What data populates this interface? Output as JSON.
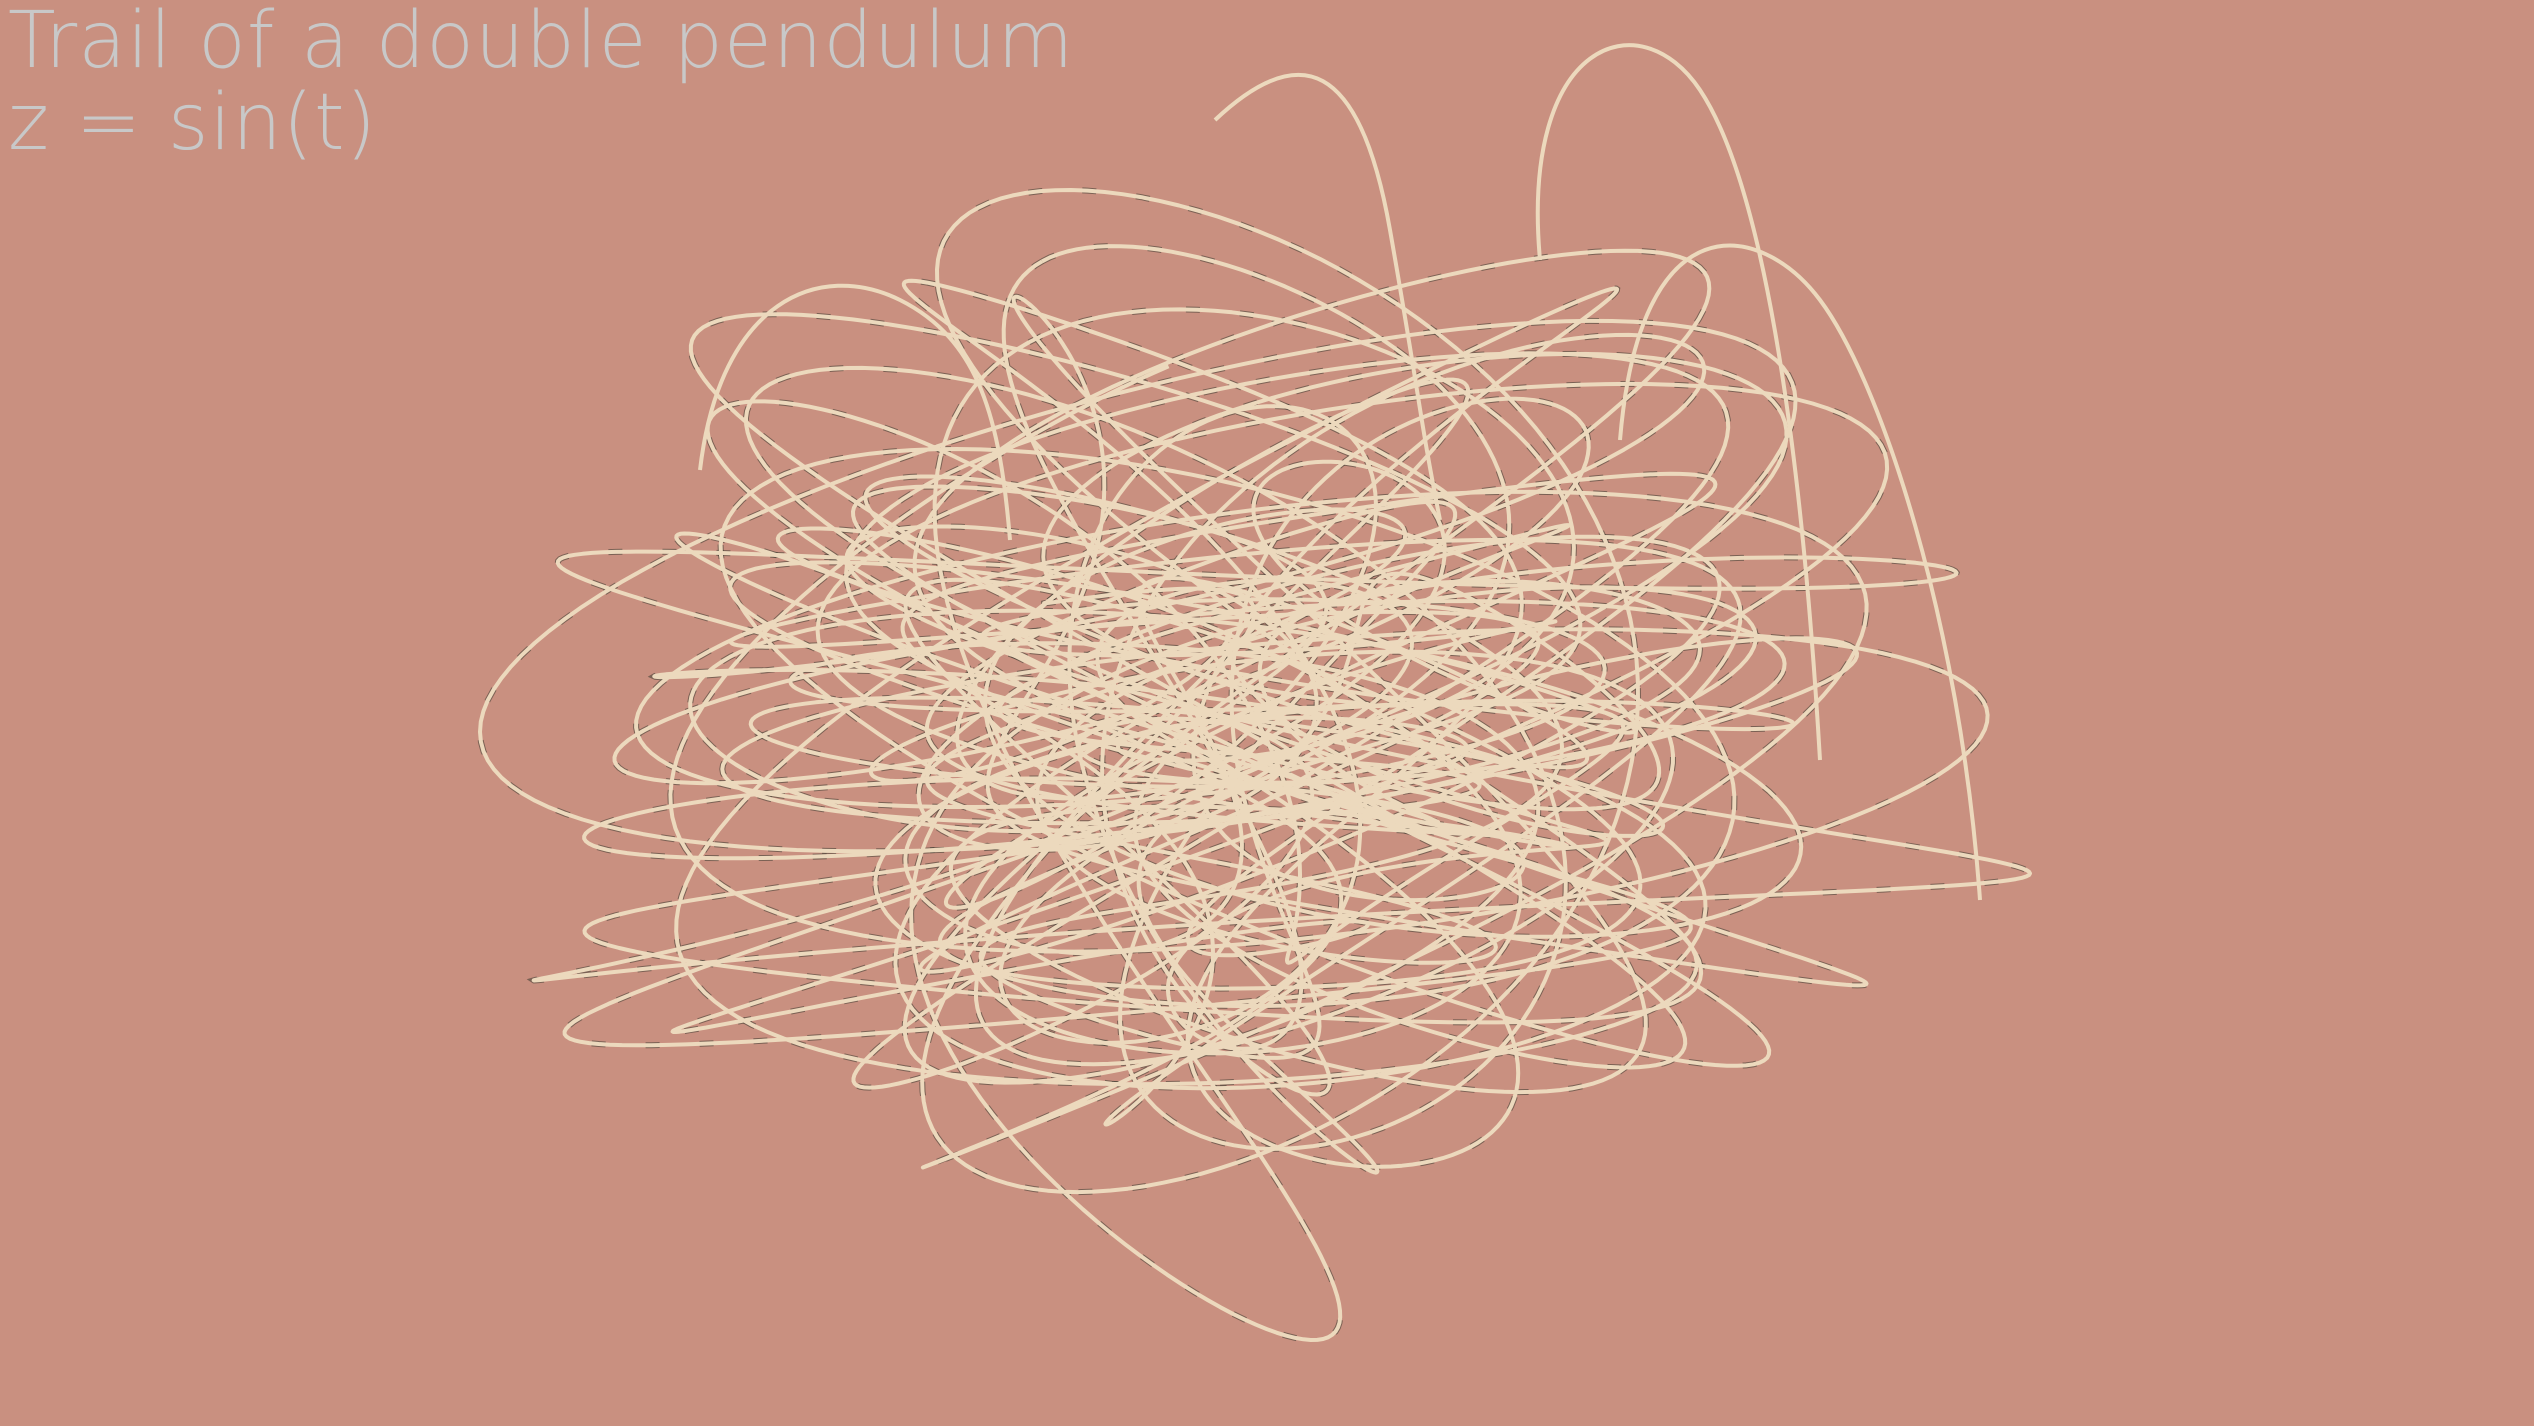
{
  "scene": {
    "title": "Trail of a double pendulum",
    "subtitle": "z = sin(t)",
    "background_color": "#c99080",
    "caption_color": "#c8c8c8",
    "trail_color": "#ecd9bd",
    "trail_shadow_color": "#3a3a30"
  }
}
